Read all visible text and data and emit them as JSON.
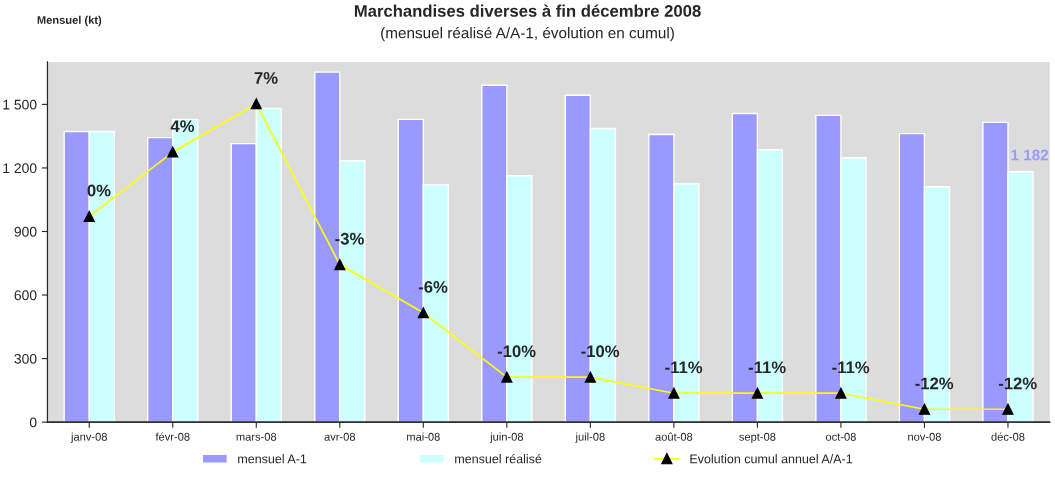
{
  "chart_data": {
    "type": "bar",
    "title": "Marchandises diverses à fin décembre 2008",
    "subtitle": "(mensuel réalisé A/A-1, évolution en cumul)",
    "ylabel": "Mensuel (kt)",
    "categories": [
      "janv-08",
      "févr-08",
      "mars-08",
      "avr-08",
      "mai-08",
      "juin-08",
      "juil-08",
      "août-08",
      "sept-08",
      "oct-08",
      "nov-08",
      "déc-08"
    ],
    "series": [
      {
        "name": "mensuel A-1",
        "color": "#9999ff",
        "values": [
          1372,
          1343,
          1315,
          1652,
          1429,
          1590,
          1543,
          1358,
          1457,
          1448,
          1362,
          1415
        ]
      },
      {
        "name": "mensuel réalisé",
        "color": "#ccffff",
        "values": [
          1372,
          1429,
          1481,
          1234,
          1120,
          1163,
          1386,
          1125,
          1286,
          1248,
          1111,
          1182
        ]
      },
      {
        "name": "Evolution cumul annuel A/A-1",
        "type": "line",
        "axis": "y2",
        "color": "#ffff00",
        "marker": "triangle",
        "values": [
          0,
          4,
          7,
          -3,
          -6,
          -10,
          -10,
          -11,
          -11,
          -11,
          -12,
          -12
        ],
        "value_labels": [
          "0%",
          "4%",
          "7%",
          "-3%",
          "-6%",
          "-10%",
          "-10%",
          "-11%",
          "-11%",
          "-11%",
          "-12%",
          "-12%"
        ]
      }
    ],
    "annotations": [
      {
        "text": "1 182",
        "x": "déc-08",
        "y": 1182
      }
    ],
    "ylim": [
      0,
      1700
    ],
    "yticks": [
      0,
      300,
      600,
      900,
      {
        "value": 1200,
        "label": "1 200"
      },
      {
        "value": 1500,
        "label": "1 500"
      }
    ],
    "y2lim": [
      -12.8,
      9.6
    ],
    "tick_labels": "y",
    "grid": false,
    "legend": "bottom"
  }
}
